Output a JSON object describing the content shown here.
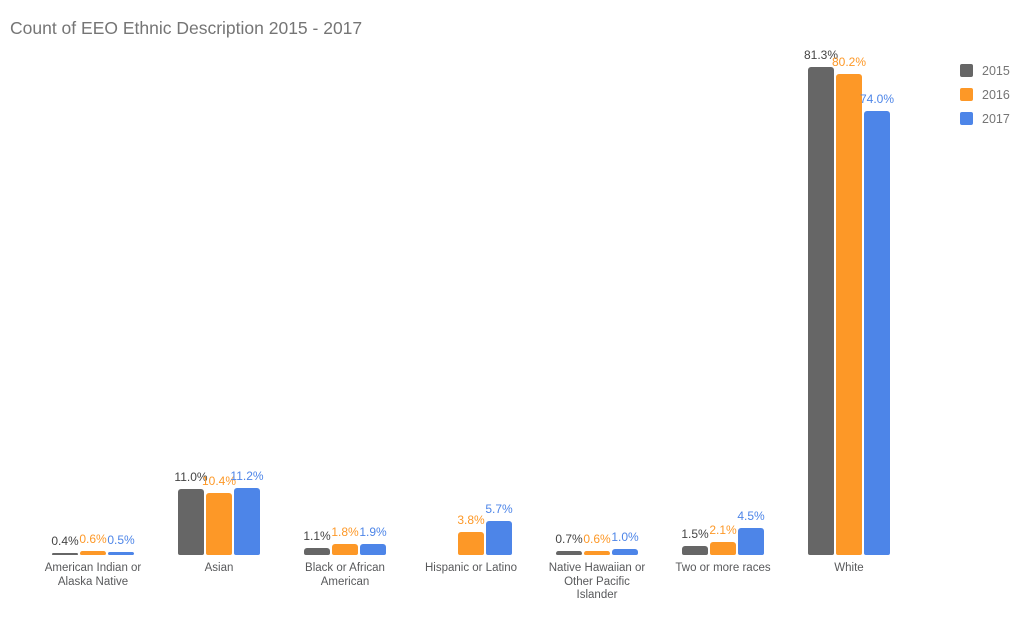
{
  "chart_data": {
    "type": "bar",
    "title": "Count of EEO Ethnic Description 2015 - 2017",
    "title_color": "#757575",
    "xlabel": "",
    "ylabel": "",
    "ylim": [
      0,
      85
    ],
    "grid": false,
    "axes_visible": false,
    "legend_position": "right",
    "value_format": "percent",
    "categories": [
      "American Indian or Alaska Native",
      "Asian",
      "Black or African American",
      "Hispanic or Latino",
      "Native Hawaiian or Other Pacific Islander",
      "Two or more races",
      "White"
    ],
    "series": [
      {
        "name": "2015",
        "color": "#666666",
        "annotation_color": "#444444",
        "values": [
          0.4,
          11.0,
          1.1,
          null,
          0.7,
          1.5,
          81.3
        ],
        "labels": [
          "0.4%",
          "11.0%",
          "1.1%",
          null,
          "0.7%",
          "1.5%",
          "81.3%"
        ]
      },
      {
        "name": "2016",
        "color": "#fd9827",
        "annotation_color": "#fd9827",
        "values": [
          0.6,
          10.4,
          1.8,
          3.8,
          0.6,
          2.1,
          80.2
        ],
        "labels": [
          "0.6%",
          "10.4%",
          "1.8%",
          "3.8%",
          "0.6%",
          "2.1%",
          "80.2%"
        ]
      },
      {
        "name": "2017",
        "color": "#4d85e8",
        "annotation_color": "#4d85e8",
        "values": [
          0.5,
          11.2,
          1.9,
          5.7,
          1.0,
          4.5,
          74.0
        ],
        "labels": [
          "0.5%",
          "11.2%",
          "1.9%",
          "5.7%",
          "1.0%",
          "4.5%",
          "74.0%"
        ]
      }
    ]
  }
}
